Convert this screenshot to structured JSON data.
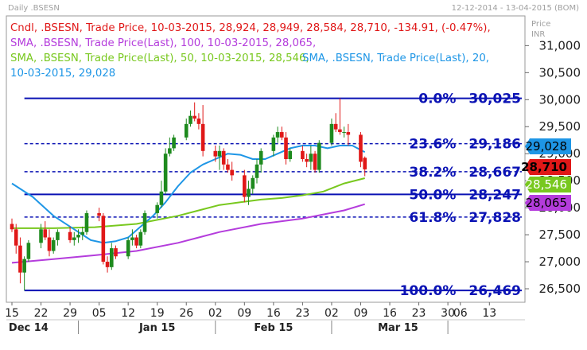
{
  "window": {
    "title": "Daily .BSESN",
    "date_range": "12-12-2014 - 13-04-2015 (BOM)",
    "axis_header": [
      "Price",
      "INR"
    ]
  },
  "legend": {
    "line1": "Cndl, .BSESN, Trade Price, 10-03-2015, 28,924, 28,949, 28,584, 28,710, -134.91, (-0.47%),",
    "line2": "SMA, .BSESN, Trade Price(Last), 100, 10-03-2015, 28,065,",
    "line3a": "SMA, .BSESN, Trade Price(Last), 50, 10-03-2015, 28,546,",
    "line3b": "SMA, .BSESN, Trade Price(Last), 20,",
    "line4": "10-03-2015, 29,028"
  },
  "colors": {
    "candle_up": "#1e8a1e",
    "candle_down": "#e01818",
    "sma20": "#1e96e6",
    "sma50": "#78c81e",
    "sma100": "#b43cdc",
    "fib": "#0a12b4",
    "grid_text": "#222222"
  },
  "chart_data": {
    "type": "candlestick",
    "y_axis": {
      "min": 26250,
      "max": 31550,
      "ticks": [
        26500,
        27000,
        27500,
        28000,
        28500,
        29000,
        29500,
        30000,
        30500,
        31000
      ],
      "tick_labels": [
        "26,500",
        "27,000",
        "27,500",
        "28,000",
        "28,500",
        "29,000",
        "29,500",
        "30,000",
        "30,500",
        "31,000"
      ]
    },
    "x_axis": {
      "day_labels": [
        {
          "day": 0,
          "label": "15"
        },
        {
          "day": 7,
          "label": "22"
        },
        {
          "day": 14,
          "label": "29"
        },
        {
          "day": 21,
          "label": "05"
        },
        {
          "day": 28,
          "label": "12"
        },
        {
          "day": 35,
          "label": "19"
        },
        {
          "day": 42,
          "label": "26"
        },
        {
          "day": 49,
          "label": "02"
        },
        {
          "day": 56,
          "label": "09"
        },
        {
          "day": 63,
          "label": "16"
        },
        {
          "day": 70,
          "label": "23"
        },
        {
          "day": 77,
          "label": "02"
        },
        {
          "day": 84,
          "label": "09"
        },
        {
          "day": 91,
          "label": "16"
        },
        {
          "day": 98,
          "label": "23"
        },
        {
          "day": 105,
          "label": "30"
        },
        {
          "day": 108,
          "label": "06"
        },
        {
          "day": 115,
          "label": "13"
        }
      ],
      "month_labels": [
        {
          "day": 4,
          "label": "Dec 14"
        },
        {
          "day": 35,
          "label": "Jan 15"
        },
        {
          "day": 63,
          "label": "Feb 15"
        },
        {
          "day": 93,
          "label": "Mar 15"
        }
      ],
      "month_separators": [
        16,
        49,
        77,
        105
      ]
    },
    "fibonacci": [
      {
        "pct": "0.0%",
        "value": 30025,
        "label": "30,025",
        "style": "solid"
      },
      {
        "pct": "23.6%",
        "value": 29186,
        "label": "29,186",
        "style": "dashed"
      },
      {
        "pct": "38.2%",
        "value": 28667,
        "label": "28,667",
        "style": "dashed"
      },
      {
        "pct": "50.0%",
        "value": 28247,
        "label": "28,247",
        "style": "solid"
      },
      {
        "pct": "61.8%",
        "value": 27828,
        "label": "27,828",
        "style": "dashed"
      },
      {
        "pct": "100.0%",
        "value": 26469,
        "label": "26,469",
        "style": "solid"
      }
    ],
    "last_value_flags": [
      {
        "label": "29,028",
        "value": 29028,
        "series": "sma20"
      },
      {
        "label": "28,710",
        "value": 28710,
        "series": "candle"
      },
      {
        "label": "28,546",
        "value": 28546,
        "series": "sma50"
      },
      {
        "label": "28,065",
        "value": 28065,
        "series": "sma100"
      }
    ],
    "candles": [
      {
        "day": 0,
        "o": 27700,
        "h": 27800,
        "l": 27550,
        "c": 27600
      },
      {
        "day": 1,
        "o": 27600,
        "h": 27700,
        "l": 27150,
        "c": 27300
      },
      {
        "day": 2,
        "o": 27300,
        "h": 27450,
        "l": 26600,
        "c": 26800
      },
      {
        "day": 3,
        "o": 26800,
        "h": 27100,
        "l": 26469,
        "c": 27050
      },
      {
        "day": 4,
        "o": 27050,
        "h": 27400,
        "l": 27000,
        "c": 27350
      },
      {
        "day": 7,
        "o": 27350,
        "h": 27700,
        "l": 27250,
        "c": 27600
      },
      {
        "day": 8,
        "o": 27600,
        "h": 27750,
        "l": 27400,
        "c": 27450
      },
      {
        "day": 9,
        "o": 27450,
        "h": 27600,
        "l": 27100,
        "c": 27200
      },
      {
        "day": 10,
        "o": 27200,
        "h": 27450,
        "l": 27150,
        "c": 27400
      },
      {
        "day": 11,
        "o": 27400,
        "h": 27600,
        "l": 27300,
        "c": 27550
      },
      {
        "day": 14,
        "o": 27550,
        "h": 27650,
        "l": 27350,
        "c": 27400
      },
      {
        "day": 15,
        "o": 27400,
        "h": 27550,
        "l": 27300,
        "c": 27450
      },
      {
        "day": 16,
        "o": 27450,
        "h": 27600,
        "l": 27350,
        "c": 27500
      },
      {
        "day": 17,
        "o": 27500,
        "h": 27650,
        "l": 27400,
        "c": 27550
      },
      {
        "day": 18,
        "o": 27550,
        "h": 27950,
        "l": 27500,
        "c": 27900
      },
      {
        "day": 21,
        "o": 27900,
        "h": 28000,
        "l": 27750,
        "c": 27850
      },
      {
        "day": 22,
        "o": 27850,
        "h": 27900,
        "l": 26950,
        "c": 27000
      },
      {
        "day": 23,
        "o": 27000,
        "h": 27100,
        "l": 26800,
        "c": 26900
      },
      {
        "day": 24,
        "o": 26900,
        "h": 27350,
        "l": 26850,
        "c": 27250
      },
      {
        "day": 25,
        "o": 27250,
        "h": 27300,
        "l": 27050,
        "c": 27100
      },
      {
        "day": 28,
        "o": 27100,
        "h": 27450,
        "l": 27050,
        "c": 27400
      },
      {
        "day": 29,
        "o": 27400,
        "h": 27600,
        "l": 27300,
        "c": 27450
      },
      {
        "day": 30,
        "o": 27450,
        "h": 27500,
        "l": 27250,
        "c": 27300
      },
      {
        "day": 31,
        "o": 27300,
        "h": 27600,
        "l": 27250,
        "c": 27550
      },
      {
        "day": 32,
        "o": 27550,
        "h": 27950,
        "l": 27500,
        "c": 27900
      },
      {
        "day": 35,
        "o": 27900,
        "h": 28100,
        "l": 27800,
        "c": 28050
      },
      {
        "day": 36,
        "o": 28050,
        "h": 28500,
        "l": 28000,
        "c": 28300
      },
      {
        "day": 37,
        "o": 28300,
        "h": 29100,
        "l": 28250,
        "c": 29000
      },
      {
        "day": 38,
        "o": 29000,
        "h": 29300,
        "l": 28950,
        "c": 29100
      },
      {
        "day": 39,
        "o": 29100,
        "h": 29350,
        "l": 29050,
        "c": 29300
      },
      {
        "day": 42,
        "o": 29300,
        "h": 29650,
        "l": 29250,
        "c": 29550
      },
      {
        "day": 43,
        "o": 29550,
        "h": 29800,
        "l": 29500,
        "c": 29700
      },
      {
        "day": 44,
        "o": 29700,
        "h": 29950,
        "l": 29600,
        "c": 29650
      },
      {
        "day": 45,
        "o": 29650,
        "h": 29750,
        "l": 29450,
        "c": 29550
      },
      {
        "day": 46,
        "o": 29550,
        "h": 29900,
        "l": 28950,
        "c": 29050
      },
      {
        "day": 49,
        "o": 29050,
        "h": 29150,
        "l": 28850,
        "c": 28950
      },
      {
        "day": 50,
        "o": 28950,
        "h": 29150,
        "l": 28700,
        "c": 29050
      },
      {
        "day": 51,
        "o": 29050,
        "h": 29100,
        "l": 28700,
        "c": 28800
      },
      {
        "day": 52,
        "o": 28800,
        "h": 28900,
        "l": 28650,
        "c": 28700
      },
      {
        "day": 53,
        "o": 28700,
        "h": 28850,
        "l": 28500,
        "c": 28600
      },
      {
        "day": 56,
        "o": 28600,
        "h": 28700,
        "l": 28100,
        "c": 28200
      },
      {
        "day": 57,
        "o": 28200,
        "h": 28500,
        "l": 28050,
        "c": 28350
      },
      {
        "day": 58,
        "o": 28350,
        "h": 28600,
        "l": 28250,
        "c": 28550
      },
      {
        "day": 59,
        "o": 28550,
        "h": 28900,
        "l": 28450,
        "c": 28800
      },
      {
        "day": 60,
        "o": 28800,
        "h": 29100,
        "l": 28650,
        "c": 29050
      },
      {
        "day": 63,
        "o": 29050,
        "h": 29350,
        "l": 28950,
        "c": 29300
      },
      {
        "day": 64,
        "o": 29300,
        "h": 29500,
        "l": 29200,
        "c": 29400
      },
      {
        "day": 65,
        "o": 29400,
        "h": 29500,
        "l": 29250,
        "c": 29300
      },
      {
        "day": 66,
        "o": 29300,
        "h": 29400,
        "l": 28800,
        "c": 28900
      },
      {
        "day": 67,
        "o": 28900,
        "h": 29100,
        "l": 28850,
        "c": 29050
      },
      {
        "day": 70,
        "o": 29050,
        "h": 29150,
        "l": 28850,
        "c": 28900
      },
      {
        "day": 71,
        "o": 28900,
        "h": 29000,
        "l": 28750,
        "c": 28850
      },
      {
        "day": 72,
        "o": 28850,
        "h": 29150,
        "l": 28700,
        "c": 29000
      },
      {
        "day": 73,
        "o": 29000,
        "h": 29050,
        "l": 28650,
        "c": 28700
      },
      {
        "day": 74,
        "o": 28700,
        "h": 29250,
        "l": 28650,
        "c": 29200
      },
      {
        "day": 77,
        "o": 29200,
        "h": 29650,
        "l": 29150,
        "c": 29550
      },
      {
        "day": 78,
        "o": 29550,
        "h": 29750,
        "l": 29400,
        "c": 29450
      },
      {
        "day": 79,
        "o": 29450,
        "h": 30025,
        "l": 29350,
        "c": 29400
      },
      {
        "day": 80,
        "o": 29400,
        "h": 29500,
        "l": 29300,
        "c": 29400
      },
      {
        "day": 81,
        "o": 29400,
        "h": 29550,
        "l": 29150,
        "c": 29350
      },
      {
        "day": 84,
        "o": 29350,
        "h": 29400,
        "l": 28750,
        "c": 28850
      },
      {
        "day": 85,
        "o": 28924,
        "h": 28949,
        "l": 28584,
        "c": 28710
      }
    ],
    "series": [
      {
        "name": "SMA 20",
        "key": "sma20",
        "points": [
          [
            0,
            28450
          ],
          [
            5,
            28200
          ],
          [
            10,
            27850
          ],
          [
            15,
            27600
          ],
          [
            19,
            27400
          ],
          [
            22,
            27350
          ],
          [
            25,
            27380
          ],
          [
            28,
            27450
          ],
          [
            31,
            27650
          ],
          [
            34,
            27850
          ],
          [
            37,
            28100
          ],
          [
            40,
            28400
          ],
          [
            43,
            28650
          ],
          [
            46,
            28800
          ],
          [
            49,
            28900
          ],
          [
            52,
            29000
          ],
          [
            55,
            28980
          ],
          [
            58,
            28900
          ],
          [
            61,
            28900
          ],
          [
            64,
            29000
          ],
          [
            67,
            29100
          ],
          [
            70,
            29150
          ],
          [
            73,
            29150
          ],
          [
            76,
            29100
          ],
          [
            79,
            29150
          ],
          [
            82,
            29150
          ],
          [
            85,
            29028
          ]
        ]
      },
      {
        "name": "SMA 50",
        "key": "sma50",
        "points": [
          [
            0,
            27620
          ],
          [
            10,
            27620
          ],
          [
            20,
            27640
          ],
          [
            30,
            27700
          ],
          [
            40,
            27850
          ],
          [
            45,
            27950
          ],
          [
            50,
            28050
          ],
          [
            55,
            28100
          ],
          [
            60,
            28150
          ],
          [
            65,
            28180
          ],
          [
            70,
            28230
          ],
          [
            75,
            28300
          ],
          [
            80,
            28450
          ],
          [
            85,
            28546
          ]
        ]
      },
      {
        "name": "SMA 100",
        "key": "sma100",
        "points": [
          [
            0,
            26980
          ],
          [
            10,
            27050
          ],
          [
            20,
            27120
          ],
          [
            30,
            27200
          ],
          [
            40,
            27350
          ],
          [
            50,
            27550
          ],
          [
            60,
            27700
          ],
          [
            70,
            27800
          ],
          [
            80,
            27950
          ],
          [
            85,
            28065
          ]
        ]
      }
    ]
  }
}
